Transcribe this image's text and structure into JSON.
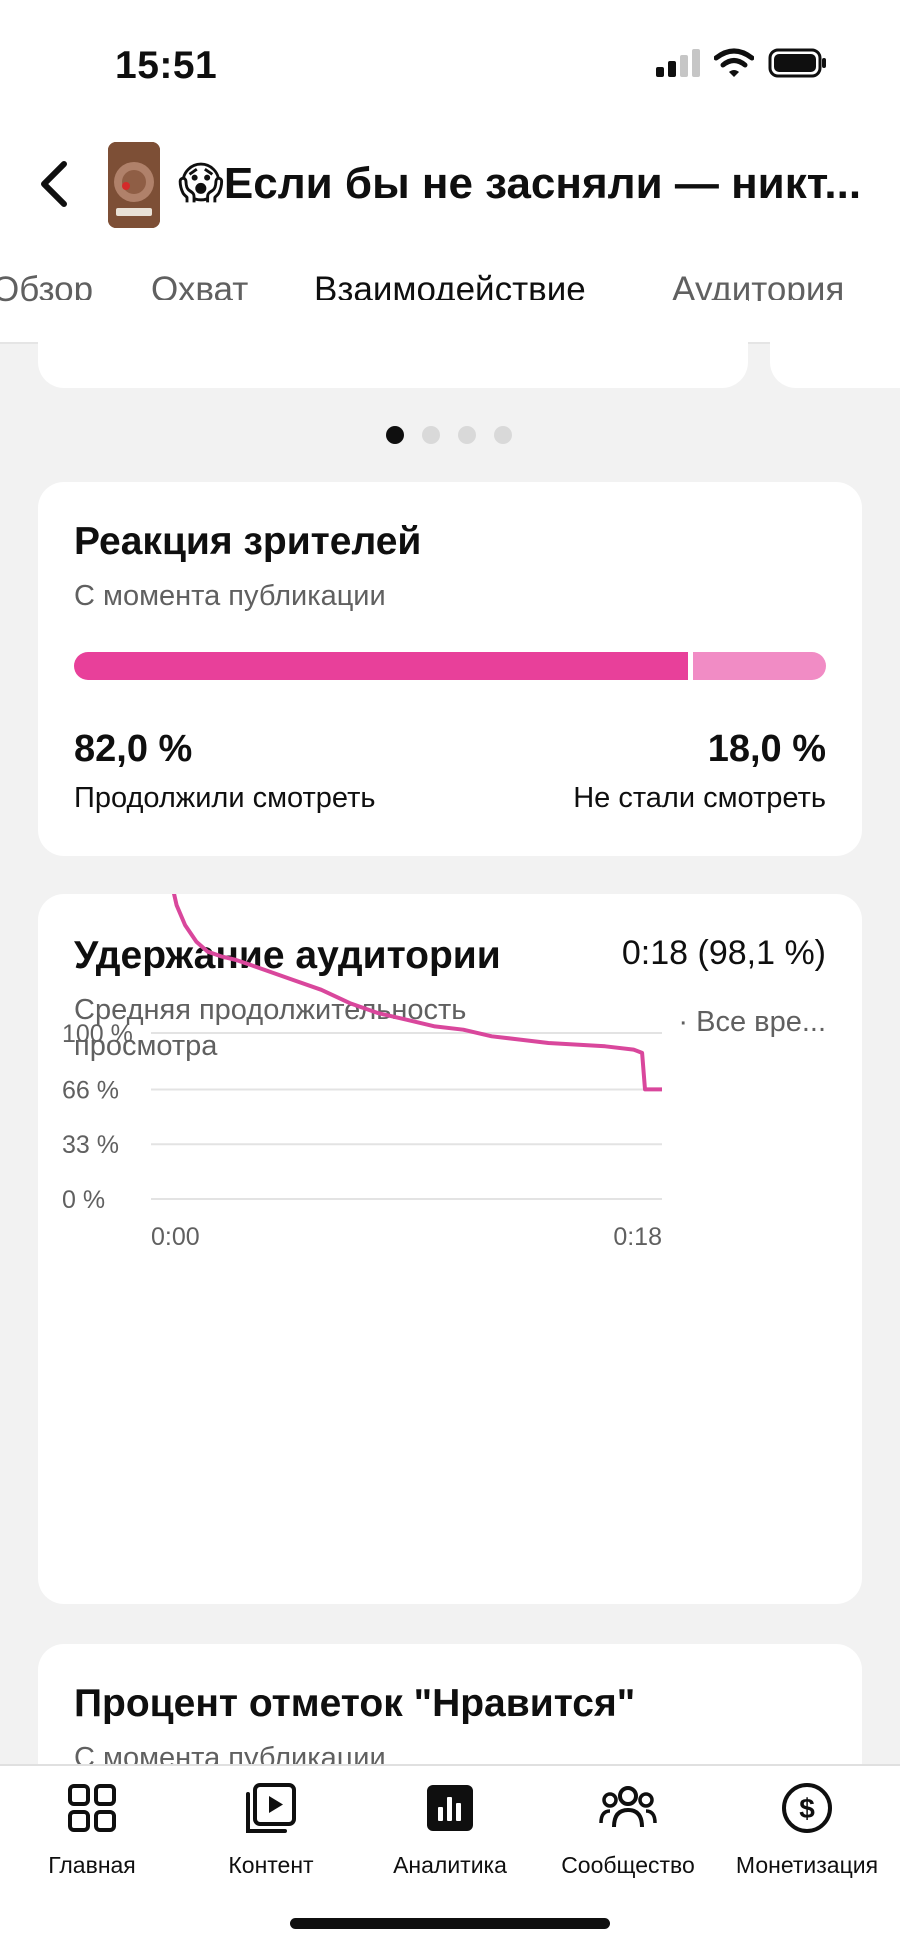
{
  "status_bar": {
    "time": "15:51",
    "icons": [
      "signal-icon",
      "wifi-icon",
      "battery-icon"
    ]
  },
  "header": {
    "back_icon": "chevron-left-icon",
    "title": "😱Если бы не засняли — никт..."
  },
  "tabs": [
    {
      "label": "Обзор",
      "active": false
    },
    {
      "label": "Охват",
      "active": false
    },
    {
      "label": "Взаимодействие",
      "active": true
    },
    {
      "label": "Аудитория",
      "active": false
    }
  ],
  "carousel": {
    "count": 4,
    "active_index": 0
  },
  "reaction": {
    "title": "Реакция зрителей",
    "subtitle": "С момента публикации",
    "continued_fraction": 0.82,
    "continued": {
      "value": "82,0 %",
      "label": "Продолжили смотреть"
    },
    "stopped": {
      "value": "18,0 %",
      "label": "Не стали смотреть"
    },
    "colors": {
      "continued": "#e8409a",
      "stopped": "#f18cc5"
    }
  },
  "retention": {
    "title": "Удержание аудитории",
    "value": "0:18 (98,1 %)",
    "subtitle": "Средняя продолжительность просмотра",
    "period": "· Все вре...",
    "chart_data": {
      "type": "line",
      "y_ticks": [
        "100 %",
        "66 %",
        "33 %",
        "0 %"
      ],
      "x_ticks": [
        "0:00",
        "0:18"
      ],
      "x": [
        0,
        0.3,
        0.6,
        0.9,
        1.2,
        1.6,
        2,
        2.5,
        3,
        3.5,
        4,
        5,
        6,
        7,
        8,
        9,
        10,
        11,
        12,
        13,
        14,
        15,
        16,
        17,
        17.3,
        17.4,
        18
      ],
      "y": [
        225,
        222,
        200,
        177,
        165,
        155,
        149,
        146,
        144,
        141,
        138,
        132,
        126,
        118,
        112,
        108,
        104,
        102,
        98,
        96,
        94,
        93,
        92,
        90,
        88,
        66,
        66
      ],
      "ylim": [
        0,
        225
      ],
      "xlim": [
        0,
        18
      ],
      "color": "#d9479c"
    }
  },
  "likes": {
    "title": "Процент отметок \"Нравится\"",
    "subtitle": "С момента публикации"
  },
  "bottom_nav": [
    {
      "label": "Главная",
      "icon": "home-grid-icon"
    },
    {
      "label": "Контент",
      "icon": "content-play-icon"
    },
    {
      "label": "Аналитика",
      "icon": "analytics-chart-icon",
      "active": true
    },
    {
      "label": "Сообщество",
      "icon": "community-icon"
    },
    {
      "label": "Монетизация",
      "icon": "dollar-icon"
    }
  ]
}
